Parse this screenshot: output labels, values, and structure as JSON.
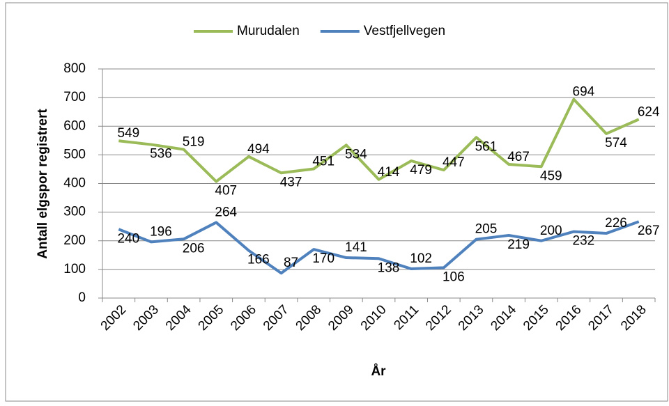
{
  "chart_data": {
    "type": "line",
    "categories": [
      "2002",
      "2003",
      "2004",
      "2005",
      "2006",
      "2007",
      "2008",
      "2009",
      "2010",
      "2011",
      "2012",
      "2013",
      "2014",
      "2015",
      "2016",
      "2017",
      "2018"
    ],
    "series": [
      {
        "name": "Murudalen",
        "color": "#9bbb59",
        "values": [
          549,
          536,
          519,
          407,
          494,
          437,
          451,
          534,
          414,
          479,
          447,
          561,
          467,
          459,
          694,
          574,
          624
        ]
      },
      {
        "name": "Vestfjellvegen",
        "color": "#4f81bd",
        "values": [
          240,
          196,
          206,
          264,
          166,
          87,
          170,
          141,
          138,
          102,
          106,
          205,
          219,
          200,
          232,
          226,
          267
        ]
      }
    ],
    "ylabel": "Antall elgspor registrert",
    "xlabel": "År",
    "ylim": [
      0,
      800
    ],
    "yticks": [
      0,
      100,
      200,
      300,
      400,
      500,
      600,
      700,
      800
    ],
    "grid": true,
    "legend": "top"
  }
}
